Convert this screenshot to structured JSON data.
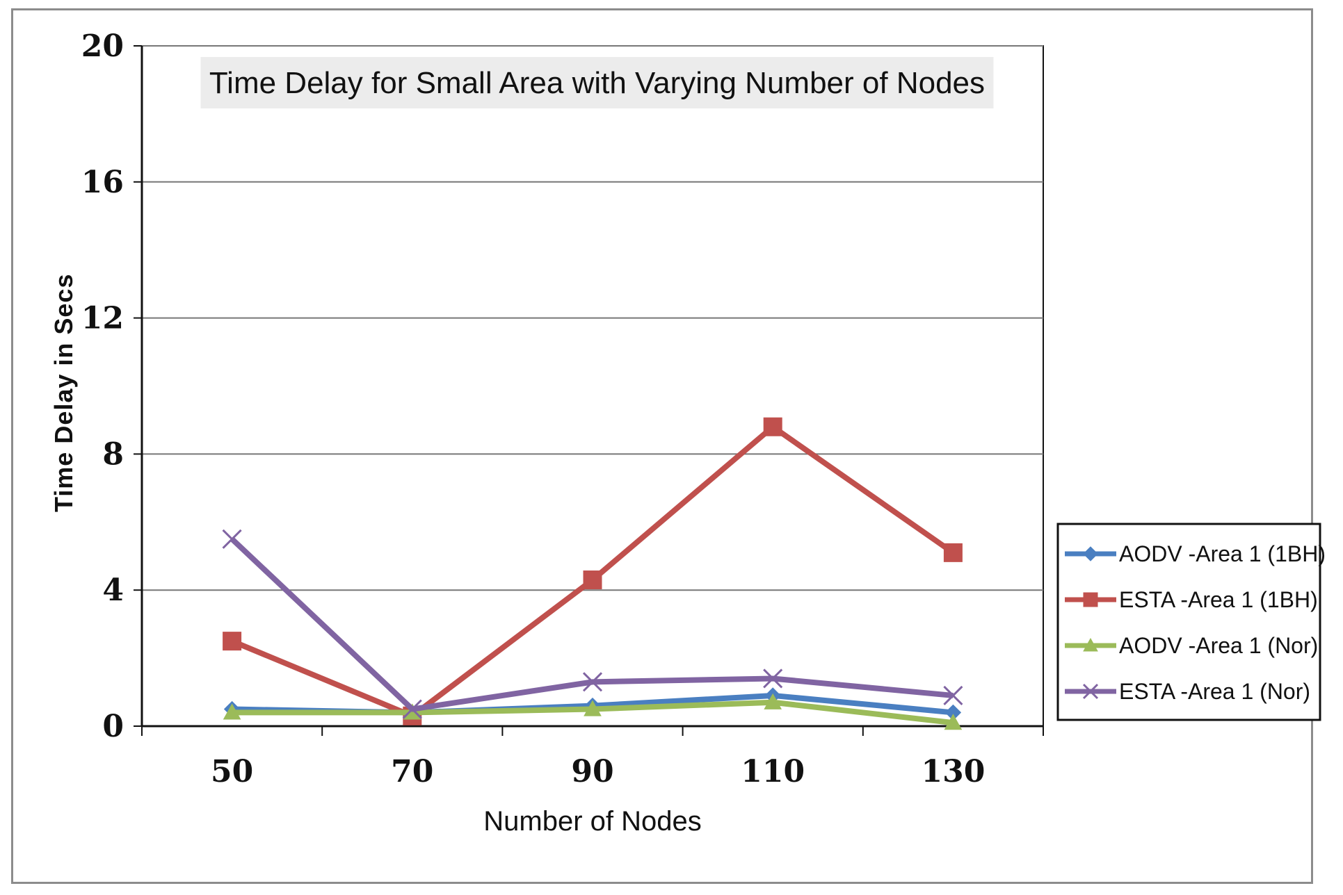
{
  "chart_data": {
    "type": "line",
    "title": "Time Delay for Small Area with Varying Number of Nodes",
    "xlabel": "Number of Nodes",
    "ylabel": "Time Delay in Secs",
    "categories": [
      "50",
      "70",
      "90",
      "110",
      "130"
    ],
    "ylim": [
      0,
      20
    ],
    "yticks": [
      "0",
      "4",
      "8",
      "12",
      "16",
      "20"
    ],
    "grid": true,
    "legend_position": "right",
    "series": [
      {
        "name": "AODV -Area 1 (1BH)",
        "color": "#4a7fc1",
        "marker": "diamond",
        "values": [
          0.5,
          0.4,
          0.6,
          0.9,
          0.4
        ]
      },
      {
        "name": "ESTA -Area 1 (1BH)",
        "color": "#c0504d",
        "marker": "square",
        "values": [
          2.5,
          0.3,
          4.3,
          8.8,
          5.1
        ]
      },
      {
        "name": "AODV -Area 1 (Nor)",
        "color": "#9bbb59",
        "marker": "triangle",
        "values": [
          0.4,
          0.4,
          0.5,
          0.7,
          0.1
        ]
      },
      {
        "name": "ESTA -Area 1 (Nor)",
        "color": "#8064a2",
        "marker": "x",
        "values": [
          5.5,
          0.5,
          1.3,
          1.4,
          0.9
        ]
      }
    ]
  }
}
